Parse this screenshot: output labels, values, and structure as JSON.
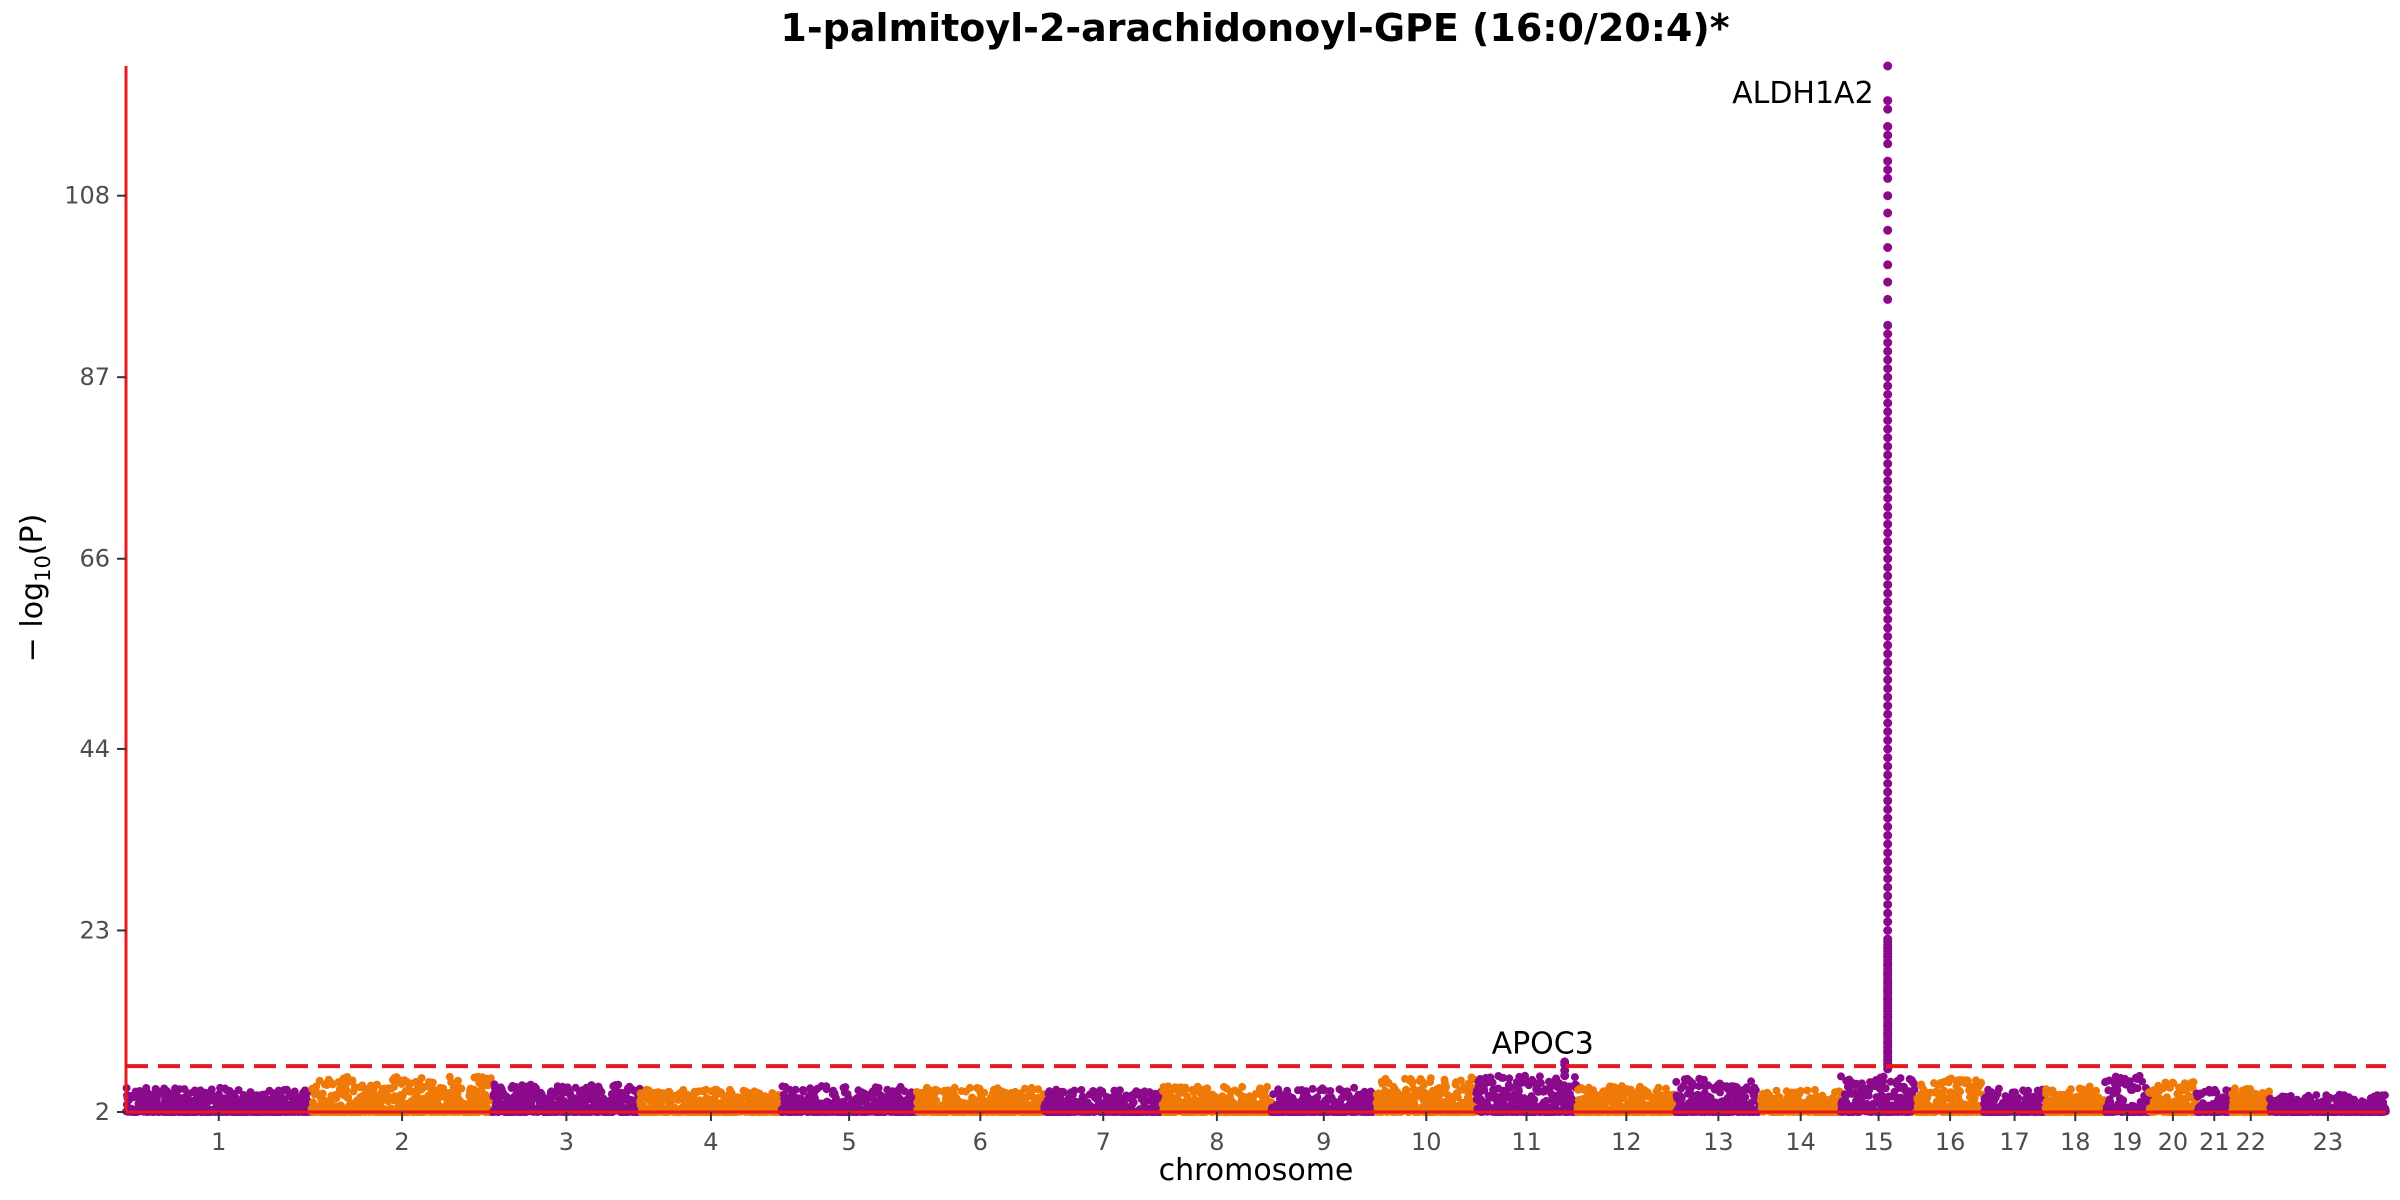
{
  "chart_data": {
    "type": "scatter",
    "subtype": "manhattan",
    "title": "1-palmitoyl-2-arachidonoyl-GPE (16:0/20:4)*",
    "xlabel": "chromosome",
    "ylabel": "− log10(P)",
    "ylabel_main": "− log",
    "ylabel_sub": "10",
    "ylabel_tail": "(P)",
    "ylim": [
      2,
      123
    ],
    "y_ticks": [
      2,
      23,
      44,
      66,
      87,
      108
    ],
    "threshold": 7.3,
    "colors": {
      "odd": "#8B0A8B",
      "even": "#F07A08",
      "threshold": "#E41A1C",
      "axis": "#E41A1C"
    },
    "chromosomes": [
      "1",
      "2",
      "3",
      "4",
      "5",
      "6",
      "7",
      "8",
      "9",
      "10",
      "11",
      "12",
      "13",
      "14",
      "15",
      "16",
      "17",
      "18",
      "19",
      "20",
      "21",
      "22",
      "23"
    ],
    "chrom_sizes": [
      249,
      243,
      198,
      190,
      181,
      171,
      159,
      146,
      141,
      134,
      135,
      133,
      114,
      107,
      102,
      90,
      83,
      80,
      59,
      64,
      47,
      51,
      156
    ],
    "chrom_max": [
      4.8,
      6.1,
      5.2,
      4.6,
      5.0,
      4.8,
      4.6,
      5.0,
      4.8,
      6.0,
      7.8,
      5.0,
      6.0,
      4.6,
      123,
      6.0,
      4.8,
      5.0,
      7.2,
      5.5,
      4.6,
      4.8,
      4.0
    ],
    "peaks": [
      {
        "chrom": "15",
        "pos": 0.62,
        "values": [
          123,
          119,
          118,
          116,
          116,
          115,
          114,
          112,
          111,
          110,
          108,
          106,
          104,
          102,
          100,
          98,
          96,
          93,
          92,
          91,
          90,
          89,
          88,
          87,
          86,
          85,
          84,
          83,
          82,
          81,
          80,
          79,
          78,
          77,
          76,
          75,
          74,
          73,
          72,
          71,
          70,
          69,
          68,
          67,
          66,
          65,
          64,
          63,
          62,
          61,
          60,
          59,
          58,
          57,
          56,
          55,
          54,
          53,
          52,
          51,
          50,
          49,
          48,
          47,
          46,
          45,
          44,
          43,
          42,
          41,
          40,
          39,
          38,
          37,
          36,
          35,
          34,
          33,
          32,
          31,
          30,
          29,
          28,
          27,
          26,
          25,
          24,
          23,
          22,
          21,
          20,
          19,
          18,
          17,
          16,
          15,
          14,
          13,
          12,
          11,
          10,
          9,
          8,
          7.5,
          7
        ]
      },
      {
        "chrom": "11",
        "pos": 0.88,
        "values": [
          7.8,
          7.5,
          6.8,
          6.2
        ]
      }
    ],
    "annotations": [
      {
        "label": "ALDH1A2",
        "chrom": "15",
        "y": 120
      },
      {
        "label": "APOC3",
        "chrom": "11",
        "y": 9
      }
    ]
  }
}
